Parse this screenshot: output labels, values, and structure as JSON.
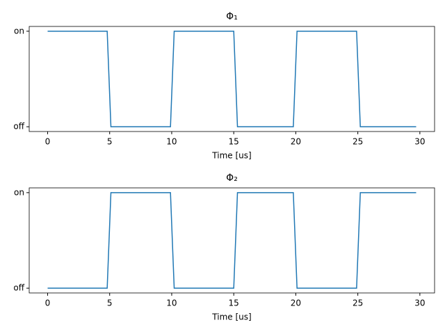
{
  "chart_data": [
    {
      "type": "line",
      "title": "Φ₁",
      "x_label": "Time [us]",
      "x": [
        0,
        4.8,
        5.1,
        9.9,
        10.2,
        15.0,
        15.3,
        19.8,
        20.1,
        24.9,
        25.2,
        29.7
      ],
      "series": [
        {
          "color": "#1f77b4",
          "values": [
            1,
            1,
            0,
            0,
            1,
            1,
            0,
            0,
            1,
            1,
            0,
            0
          ]
        }
      ],
      "xlim": [
        -1.485,
        31.185
      ],
      "xticks": [
        0,
        5,
        10,
        15,
        20,
        25,
        30
      ],
      "ylim": [
        -0.05,
        1.05
      ],
      "yticks": [
        {
          "value": 0,
          "label": "off"
        },
        {
          "value": 1,
          "label": "on"
        }
      ]
    },
    {
      "type": "line",
      "title": "Φ₂",
      "x_label": "Time [us]",
      "x": [
        0,
        4.8,
        5.1,
        9.9,
        10.2,
        15.0,
        15.3,
        19.8,
        20.1,
        24.9,
        25.2,
        29.7
      ],
      "series": [
        {
          "color": "#1f77b4",
          "values": [
            0,
            0,
            1,
            1,
            0,
            0,
            1,
            1,
            0,
            0,
            1,
            1
          ]
        }
      ],
      "xlim": [
        -1.485,
        31.185
      ],
      "xticks": [
        0,
        5,
        10,
        15,
        20,
        25,
        30
      ],
      "ylim": [
        -0.05,
        1.05
      ],
      "yticks": [
        {
          "value": 0,
          "label": "off"
        },
        {
          "value": 1,
          "label": "on"
        }
      ]
    }
  ]
}
